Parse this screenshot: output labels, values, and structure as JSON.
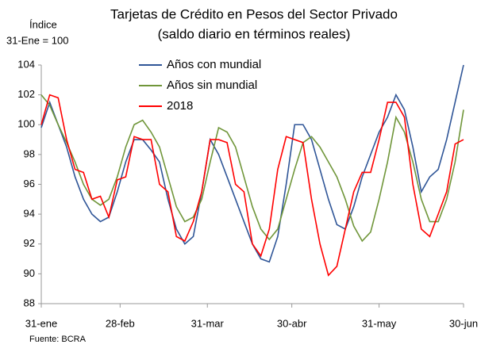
{
  "chart_data": {
    "type": "line",
    "title": "Tarjetas de Crédito en Pesos del Sector Privado",
    "subtitle": "(saldo diario en términos reales)",
    "y_label": [
      "Índice",
      "31-Ene = 100"
    ],
    "source": "Fuente: BCRA",
    "x": [
      0,
      3,
      6,
      9,
      12,
      15,
      18,
      21,
      24,
      27,
      30,
      33,
      36,
      39,
      42,
      45,
      48,
      51,
      54,
      57,
      60,
      63,
      66,
      69,
      72,
      75,
      78,
      81,
      84,
      87,
      90,
      93,
      96,
      99,
      102,
      105,
      108,
      111,
      114,
      117,
      120,
      123,
      126,
      129,
      132,
      135,
      138,
      141,
      144,
      147,
      150
    ],
    "xlim": [
      0,
      150
    ],
    "xticks": [
      {
        "value": 0,
        "label": "31-ene"
      },
      {
        "value": 28,
        "label": "28-feb"
      },
      {
        "value": 59,
        "label": "31-mar"
      },
      {
        "value": 89,
        "label": "30-abr"
      },
      {
        "value": 120,
        "label": "31-may"
      },
      {
        "value": 150,
        "label": "30-jun"
      }
    ],
    "ylim": [
      88,
      104
    ],
    "yticks": [
      88,
      90,
      92,
      94,
      96,
      98,
      100,
      102,
      104
    ],
    "grid": false,
    "legend": "top",
    "series": [
      {
        "name": "Años con mundial",
        "color": "#2f5597",
        "values": [
          99.8,
          101.5,
          100,
          98.5,
          96.5,
          95,
          94,
          93.5,
          93.8,
          95.5,
          97.5,
          99,
          99,
          98.3,
          97.5,
          95,
          93,
          92,
          92.5,
          95.5,
          99,
          98,
          96.5,
          95,
          93.5,
          92,
          91,
          90.8,
          92.5,
          96,
          100,
          100,
          99,
          97,
          95,
          93.3,
          93,
          94.5,
          96.5,
          98,
          99.5,
          100.5,
          102,
          101,
          98.5,
          95.5,
          96.5,
          97,
          99,
          101.5,
          104
        ]
      },
      {
        "name": "Años sin mundial",
        "color": "#70963a",
        "values": [
          102,
          101.3,
          100,
          98.8,
          97.5,
          96,
          95,
          94.6,
          95,
          96.5,
          98.5,
          100,
          100.3,
          99.5,
          98.5,
          96.5,
          94.5,
          93.5,
          93.8,
          95,
          97.5,
          99.8,
          99.5,
          98.5,
          96.5,
          94.5,
          93,
          92.3,
          93,
          95,
          97,
          98.8,
          99.2,
          98.5,
          97.5,
          96.5,
          95,
          93.2,
          92.2,
          92.8,
          95,
          97.5,
          100.5,
          99.5,
          97.5,
          95,
          93.5,
          93.5,
          95,
          97.5,
          101
        ]
      },
      {
        "name": "2018",
        "color": "#ff0000",
        "values": [
          100,
          102,
          101.8,
          99,
          97,
          96.8,
          95,
          95.2,
          93.8,
          96.3,
          96.5,
          99.2,
          99,
          99,
          96,
          95.5,
          92.5,
          92.2,
          93.5,
          95.5,
          99,
          99,
          98.8,
          96,
          95.5,
          92,
          91.2,
          93,
          97,
          99.2,
          99,
          98.8,
          95,
          92,
          89.9,
          90.5,
          93,
          95.5,
          96.8,
          96.8,
          99,
          101.5,
          101.5,
          100.5,
          96,
          93,
          92.5,
          94,
          95.5,
          98.7,
          99
        ]
      }
    ]
  }
}
